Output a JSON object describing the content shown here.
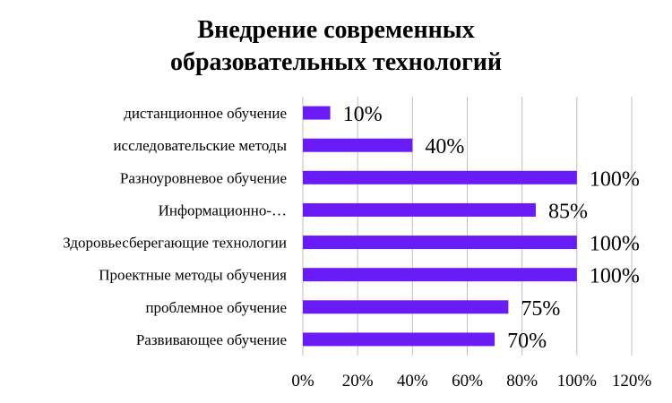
{
  "chart_data": {
    "type": "bar",
    "orientation": "horizontal",
    "title_lines": [
      "Внедрение современных",
      "образовательных  технологий"
    ],
    "categories": [
      "дистанционное обучение",
      "исследовательские  методы",
      "Разноуровневое обучение",
      "Информационно-…",
      "Здоровьесберегающие технологии",
      "Проектные методы обучения",
      "проблемное обучение",
      "Развивающее обучение"
    ],
    "values": [
      10,
      40,
      100,
      85,
      100,
      100,
      75,
      70
    ],
    "data_labels": [
      "10%",
      "40%",
      "100%",
      "85%",
      "100%",
      "100%",
      "75%",
      "70%"
    ],
    "x_ticks": [
      "0%",
      "20%",
      "40%",
      "60%",
      "80%",
      "100%",
      "120%"
    ],
    "xlim": [
      0,
      120
    ],
    "grid": true,
    "legend": "none",
    "bar_color": "#6a1cf6",
    "grid_color": "#bfbfbf"
  }
}
